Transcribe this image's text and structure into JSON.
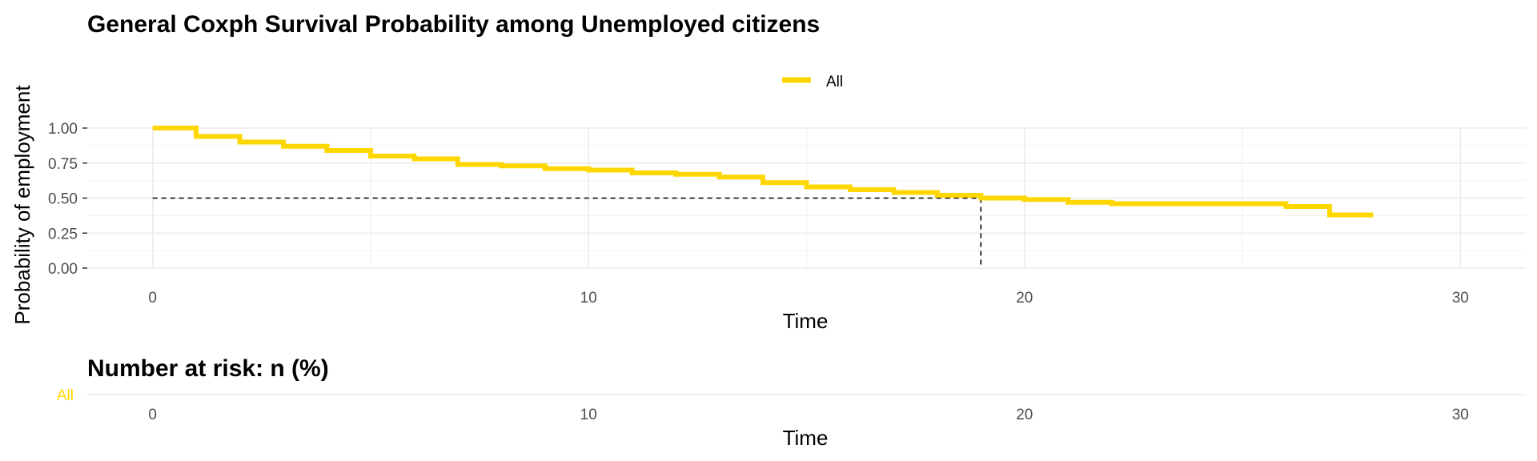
{
  "chart_data": [
    {
      "type": "line",
      "step": true,
      "title": "General Coxph Survival Probability among Unemployed citizens",
      "xlabel": "Time",
      "ylabel": "Probability of employment",
      "xlim": [
        -1.5,
        31.5
      ],
      "ylim": [
        0,
        1
      ],
      "x_ticks": [
        "0",
        "10",
        "20",
        "30"
      ],
      "x_tick_values": [
        0,
        10,
        20,
        30
      ],
      "y_ticks": [
        "0.00",
        "0.25",
        "0.50",
        "0.75",
        "1.00"
      ],
      "y_tick_values": [
        0,
        0.25,
        0.5,
        0.75,
        1.0
      ],
      "grid": true,
      "legend": {
        "position": "top",
        "entries": [
          "All"
        ]
      },
      "series": [
        {
          "name": "All",
          "color": "#FFD700",
          "x": [
            0,
            1,
            2,
            3,
            4,
            5,
            6,
            7,
            8,
            9,
            10,
            11,
            12,
            13,
            14,
            15,
            16,
            17,
            18,
            19,
            20,
            21,
            22,
            23,
            24,
            25,
            26,
            27,
            28
          ],
          "y": [
            1.0,
            0.94,
            0.9,
            0.87,
            0.84,
            0.8,
            0.78,
            0.74,
            0.73,
            0.71,
            0.7,
            0.68,
            0.67,
            0.65,
            0.61,
            0.58,
            0.56,
            0.54,
            0.52,
            0.5,
            0.49,
            0.47,
            0.46,
            0.46,
            0.46,
            0.46,
            0.44,
            0.38,
            0.38
          ]
        }
      ],
      "median": {
        "x": 19,
        "y": 0.5
      }
    },
    {
      "type": "table",
      "title": "Number at risk: n (%)",
      "xlabel": "Time",
      "rows": [
        "All"
      ],
      "row_colors": [
        "#FFD700"
      ],
      "x_ticks": [
        "0",
        "10",
        "20",
        "30"
      ],
      "x_tick_values": [
        0,
        10,
        20,
        30
      ]
    }
  ]
}
